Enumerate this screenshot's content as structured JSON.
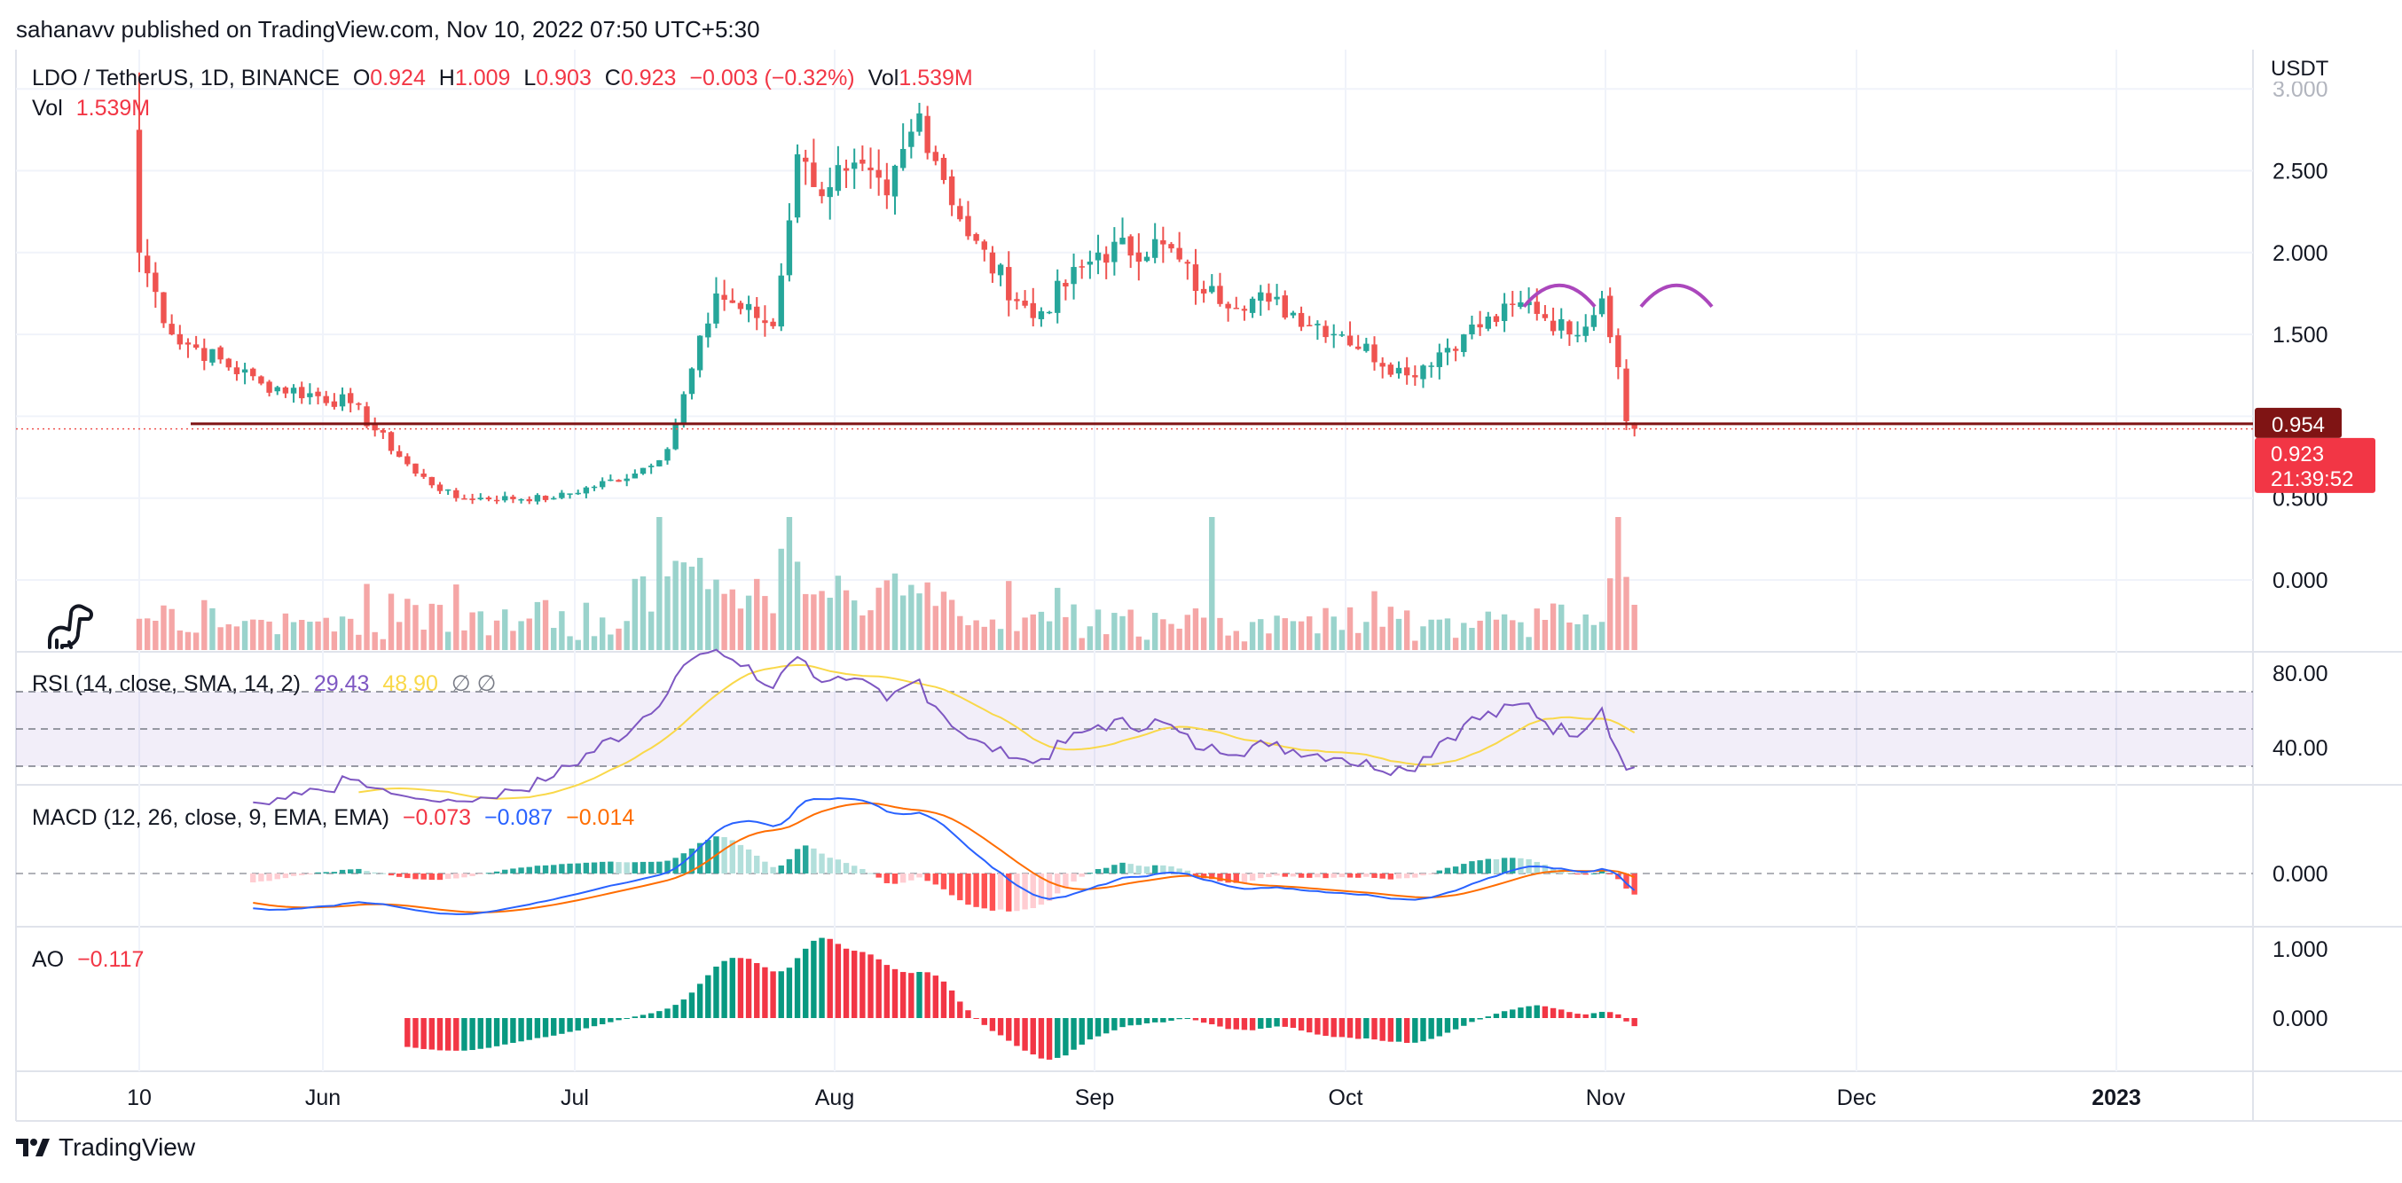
{
  "header": {
    "published": "sahanavv published on TradingView.com, Nov 10, 2022 07:50 UTC+5:30"
  },
  "legend": {
    "symbol": "LDO / TetherUS, 1D, BINANCE",
    "o_label": "O",
    "o": "0.924",
    "h_label": "H",
    "h": "1.009",
    "l_label": "L",
    "l": "0.903",
    "c_label": "C",
    "c": "0.923",
    "change": "−0.003 (−0.32%)",
    "vol_label": "Vol",
    "vol": "1.539M",
    "vol2_label": "Vol",
    "vol2": "1.539M"
  },
  "axis": {
    "currency": "USDT"
  },
  "price_tags": {
    "level": "0.954",
    "last": "0.923",
    "countdown": "21:39:52"
  },
  "rsi": {
    "label": "RSI (14, close, SMA, 14, 2)",
    "value": "29.43",
    "sma": "48.90",
    "extra": "∅ ∅"
  },
  "macd": {
    "label": "MACD (12, 26, close, 9, EMA, EMA)",
    "hist": "−0.073",
    "macd": "−0.087",
    "signal": "−0.014"
  },
  "ao": {
    "label": "AO",
    "value": "−0.117"
  },
  "footer": {
    "brand": "TradingView"
  },
  "colors": {
    "up": "#26a69a",
    "down": "#ef5350",
    "up_vol": "#9ad3cc",
    "down_vol": "#f5a6a6",
    "support": "#7f1414",
    "rsi": "#7e57c2",
    "rsi_sma": "#f9d849",
    "macd": "#2962ff",
    "signal": "#ff6d00",
    "pattern": "#ab47bc"
  },
  "chart_data": [
    {
      "type": "candlestick",
      "title": "LDO / TetherUS, 1D, BINANCE",
      "x_ticks": [
        "10",
        "Jun",
        "Jul",
        "Aug",
        "Sep",
        "Oct",
        "Nov",
        "Dec",
        "2023"
      ],
      "y_ticks": [
        0.0,
        0.5,
        1.0,
        1.5,
        2.0,
        2.5,
        3.0
      ],
      "y_tick_labels": [
        "0.000",
        "0.500",
        "1.000",
        "1.500",
        "2.000",
        "2.500",
        "3.000"
      ],
      "ylim": [
        -0.4,
        3.2
      ],
      "start": "2022-05-10",
      "last_close": 0.923,
      "support_level": 0.954,
      "volume": "1.539M",
      "key_points": [
        {
          "date": "2022-05-10",
          "close": 2.0
        },
        {
          "date": "2022-05-14",
          "close": 1.5
        },
        {
          "date": "2022-05-25",
          "close": 1.2
        },
        {
          "date": "2022-06-05",
          "close": 1.08
        },
        {
          "date": "2022-06-13",
          "close": 0.65
        },
        {
          "date": "2022-06-18",
          "close": 0.5
        },
        {
          "date": "2022-06-30",
          "close": 0.5
        },
        {
          "date": "2022-07-10",
          "close": 0.65
        },
        {
          "date": "2022-07-14",
          "close": 0.8
        },
        {
          "date": "2022-07-20",
          "close": 1.75
        },
        {
          "date": "2022-07-27",
          "close": 1.55
        },
        {
          "date": "2022-07-30",
          "close": 2.6
        },
        {
          "date": "2022-08-01",
          "close": 2.4
        },
        {
          "date": "2022-08-05",
          "close": 2.5
        },
        {
          "date": "2022-08-10",
          "close": 2.35
        },
        {
          "date": "2022-08-14",
          "close": 2.85
        },
        {
          "date": "2022-08-20",
          "close": 2.1
        },
        {
          "date": "2022-08-28",
          "close": 1.6
        },
        {
          "date": "2022-09-05",
          "close": 2.0
        },
        {
          "date": "2022-09-13",
          "close": 2.05
        },
        {
          "date": "2022-09-18",
          "close": 1.75
        },
        {
          "date": "2022-09-26",
          "close": 1.7
        },
        {
          "date": "2022-10-05",
          "close": 1.5
        },
        {
          "date": "2022-10-13",
          "close": 1.25
        },
        {
          "date": "2022-10-20",
          "close": 1.5
        },
        {
          "date": "2022-10-28",
          "close": 1.7
        },
        {
          "date": "2022-11-02",
          "close": 1.5
        },
        {
          "date": "2022-11-06",
          "close": 1.72
        },
        {
          "date": "2022-11-08",
          "close": 1.3
        },
        {
          "date": "2022-11-09",
          "close": 0.97
        },
        {
          "date": "2022-11-10",
          "close": 0.923
        }
      ]
    },
    {
      "type": "line",
      "title": "RSI (14, close, SMA, 14, 2)",
      "y_ticks": [
        40,
        80
      ],
      "bands": [
        30,
        50,
        70
      ],
      "ylim": [
        20,
        90
      ],
      "series": [
        {
          "name": "RSI",
          "color": "#7e57c2",
          "last": 29.43
        },
        {
          "name": "SMA",
          "color": "#f9d849",
          "last": 48.9
        }
      ]
    },
    {
      "type": "bar",
      "title": "MACD (12, 26, close, 9, EMA, EMA)",
      "y_ticks": [
        0.0
      ],
      "series": [
        {
          "name": "Histogram",
          "last": -0.073
        },
        {
          "name": "MACD",
          "color": "#2962ff",
          "last": -0.087
        },
        {
          "name": "Signal",
          "color": "#ff6d00",
          "last": -0.014
        }
      ]
    },
    {
      "type": "bar",
      "title": "AO",
      "y_ticks": [
        0.0,
        1.0
      ],
      "series": [
        {
          "name": "AO",
          "last": -0.117
        }
      ]
    }
  ]
}
